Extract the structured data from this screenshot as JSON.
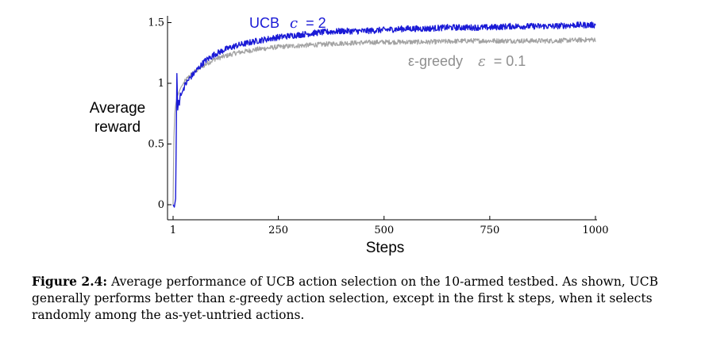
{
  "chart_data": {
    "type": "line",
    "title": "",
    "xlabel": "Steps",
    "ylabel": [
      "Average",
      "reward"
    ],
    "xlim": [
      1,
      1000
    ],
    "ylim": [
      -0.15,
      1.55
    ],
    "x_ticks": [
      1,
      250,
      500,
      750,
      1000
    ],
    "y_ticks": [
      0,
      0.5,
      1,
      1.5
    ],
    "y_tick_labels": [
      "0",
      "0.5",
      "1",
      "1.5"
    ],
    "grid": false,
    "legend": "inline labels",
    "series": [
      {
        "name": "UCB",
        "param_symbol": "c",
        "param_value": "= 2",
        "color": "#1a1ad6",
        "label_position": "top-center",
        "x": [
          1,
          4,
          7,
          10,
          12,
          14,
          16,
          18,
          20,
          25,
          30,
          40,
          50,
          60,
          75,
          100,
          125,
          150,
          175,
          200,
          250,
          300,
          350,
          400,
          450,
          500,
          550,
          600,
          650,
          700,
          750,
          800,
          850,
          900,
          950,
          1000
        ],
        "y": [
          0.0,
          -0.02,
          0.05,
          1.08,
          0.78,
          0.86,
          0.82,
          0.92,
          0.9,
          0.95,
          0.99,
          1.04,
          1.08,
          1.12,
          1.18,
          1.24,
          1.28,
          1.31,
          1.33,
          1.35,
          1.38,
          1.4,
          1.42,
          1.43,
          1.43,
          1.44,
          1.45,
          1.45,
          1.46,
          1.46,
          1.46,
          1.47,
          1.47,
          1.47,
          1.48,
          1.48
        ],
        "noise": 0.025
      },
      {
        "name": "ε-greedy",
        "param_symbol": "ε",
        "param_value": "= 0.1",
        "color": "#a3a3a3",
        "label_position": "right-middle",
        "x": [
          1,
          2,
          3,
          5,
          7,
          10,
          15,
          20,
          30,
          40,
          50,
          75,
          100,
          150,
          200,
          250,
          300,
          400,
          500,
          600,
          700,
          800,
          900,
          1000
        ],
        "y": [
          0.0,
          0.3,
          0.55,
          0.75,
          0.82,
          0.88,
          0.93,
          0.97,
          1.02,
          1.06,
          1.09,
          1.15,
          1.2,
          1.25,
          1.28,
          1.3,
          1.31,
          1.33,
          1.34,
          1.34,
          1.35,
          1.35,
          1.35,
          1.36
        ],
        "noise": 0.02
      }
    ]
  },
  "caption": {
    "label": "Figure 2.4:",
    "text": "Average performance of UCB action selection on the 10-armed testbed. As shown, UCB generally performs better than ε-greedy action selection, except in the first k steps, when it selects randomly among the as-yet-untried actions."
  }
}
